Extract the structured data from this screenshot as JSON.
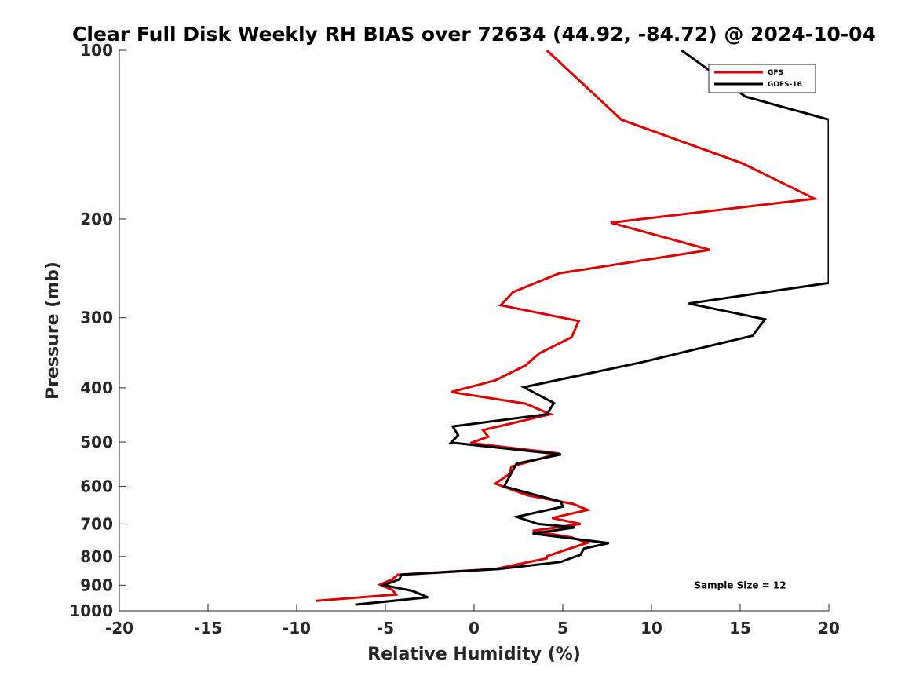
{
  "chart_data": {
    "type": "line",
    "title": "Clear Full Disk Weekly RH BIAS over 72634 (44.92, -84.72) @ 2024-10-04",
    "xlabel": "Relative Humidity (%)",
    "ylabel": "Pressure (mb)",
    "xlim": [
      -20,
      20
    ],
    "ylim": [
      100,
      1000
    ],
    "yscale": "log",
    "y_reversed": true,
    "xticks": [
      -20,
      -15,
      -10,
      -5,
      0,
      5,
      10,
      15,
      20
    ],
    "xtick_labels": [
      "-20",
      "-15",
      "-10",
      "-5",
      "0",
      "5",
      "10",
      "15",
      "20"
    ],
    "yticks": [
      100,
      200,
      300,
      400,
      500,
      600,
      700,
      800,
      900,
      1000
    ],
    "ytick_labels": [
      "100",
      "200",
      "300",
      "400",
      "500",
      "600",
      "700",
      "800",
      "900",
      "1000"
    ],
    "grid": false,
    "legend_position": "top-right",
    "series": [
      {
        "name": "GFS",
        "color": "#dd0000",
        "points": [
          [
            4.1,
            100
          ],
          [
            8.3,
            133
          ],
          [
            15.1,
            159
          ],
          [
            19.2,
            184
          ],
          [
            7.7,
            203
          ],
          [
            13.3,
            227
          ],
          [
            4.8,
            250
          ],
          [
            2.2,
            270
          ],
          [
            1.5,
            285
          ],
          [
            5.9,
            304
          ],
          [
            5.5,
            325
          ],
          [
            3.7,
            347
          ],
          [
            2.9,
            365
          ],
          [
            1.2,
            388
          ],
          [
            -1.3,
            407
          ],
          [
            2.9,
            427
          ],
          [
            4.3,
            446
          ],
          [
            0.5,
            476
          ],
          [
            0.8,
            489
          ],
          [
            -0.2,
            502
          ],
          [
            4.8,
            524
          ],
          [
            2.1,
            553
          ],
          [
            2.0,
            570
          ],
          [
            1.2,
            593
          ],
          [
            3.0,
            622
          ],
          [
            5.6,
            645
          ],
          [
            6.4,
            661
          ],
          [
            4.4,
            683
          ],
          [
            6.0,
            700
          ],
          [
            3.3,
            720
          ],
          [
            5.5,
            740
          ],
          [
            6.4,
            756
          ],
          [
            5.4,
            774
          ],
          [
            4.1,
            799
          ],
          [
            4.1,
            806
          ],
          [
            1.2,
            842
          ],
          [
            -4.3,
            862
          ],
          [
            -4.6,
            878
          ],
          [
            -5.3,
            898
          ],
          [
            -4.6,
            918
          ],
          [
            -4.4,
            935
          ],
          [
            -8.9,
            960
          ]
        ]
      },
      {
        "name": "GOES-16",
        "color": "#000000",
        "points": [
          [
            11.7,
            100
          ],
          [
            15.3,
            121
          ],
          [
            20.0,
            133
          ],
          [
            20.0,
            260
          ],
          [
            12.1,
            283
          ],
          [
            16.4,
            302
          ],
          [
            15.7,
            323
          ],
          [
            12.4,
            342
          ],
          [
            9.5,
            360
          ],
          [
            2.8,
            399
          ],
          [
            4.5,
            426
          ],
          [
            4.1,
            446
          ],
          [
            -1.2,
            469
          ],
          [
            -0.9,
            486
          ],
          [
            -1.3,
            501
          ],
          [
            4.9,
            526
          ],
          [
            2.4,
            546
          ],
          [
            2.2,
            560
          ],
          [
            1.7,
            600
          ],
          [
            4.9,
            639
          ],
          [
            5.0,
            652
          ],
          [
            2.4,
            680
          ],
          [
            3.6,
            700
          ],
          [
            5.7,
            710
          ],
          [
            3.3,
            728
          ],
          [
            7.6,
            757
          ],
          [
            6.2,
            774
          ],
          [
            6.0,
            794
          ],
          [
            4.9,
            818
          ],
          [
            1.4,
            842
          ],
          [
            -4.1,
            862
          ],
          [
            -4.2,
            878
          ],
          [
            -5.1,
            900
          ],
          [
            -3.5,
            921
          ],
          [
            -2.6,
            946
          ],
          [
            -6.7,
            975
          ]
        ]
      }
    ],
    "annotations": [
      {
        "text": "Sample Size = 12",
        "x": 15.0,
        "y": 900
      }
    ]
  }
}
